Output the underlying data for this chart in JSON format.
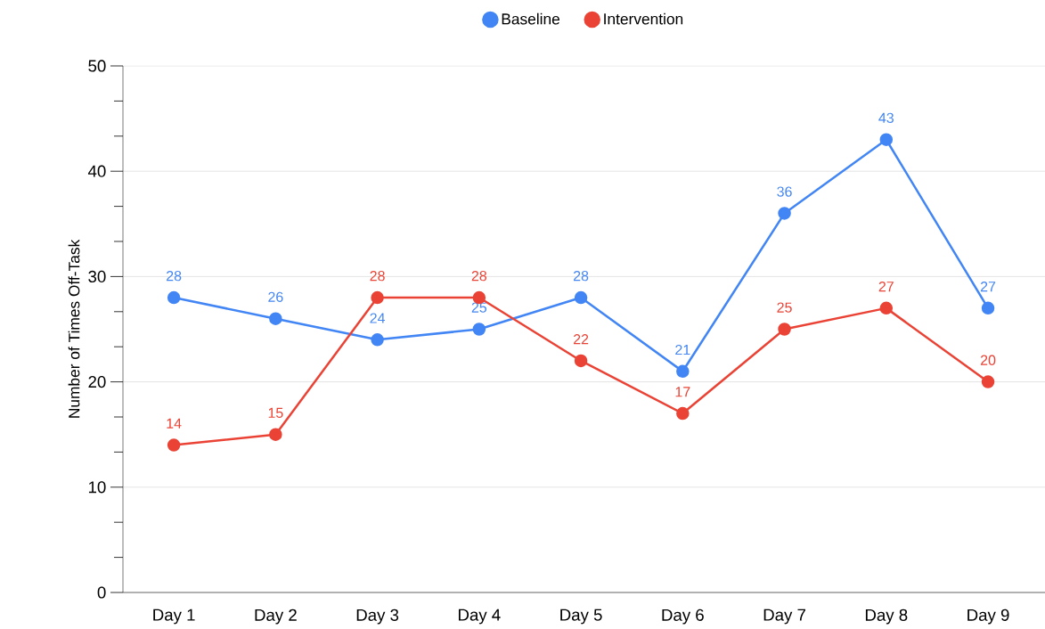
{
  "chart_data": {
    "type": "line",
    "ylabel": "Number of Times Off-Task",
    "categories": [
      "Day 1",
      "Day 2",
      "Day 3",
      "Day 4",
      "Day 5",
      "Day 6",
      "Day 7",
      "Day 8",
      "Day 9"
    ],
    "series": [
      {
        "name": "Baseline",
        "color": "#4285f4",
        "values": [
          28,
          26,
          24,
          25,
          28,
          21,
          36,
          43,
          27
        ]
      },
      {
        "name": "Intervention",
        "color": "#ea4335",
        "values": [
          14,
          15,
          28,
          28,
          22,
          17,
          25,
          27,
          20
        ]
      }
    ],
    "ylim": [
      0,
      50
    ],
    "yticks": [
      0,
      10,
      20,
      30,
      40,
      50
    ],
    "grid": "y",
    "legend": "top",
    "marker": "circle",
    "line_style": "solid",
    "data_labels": true
  }
}
